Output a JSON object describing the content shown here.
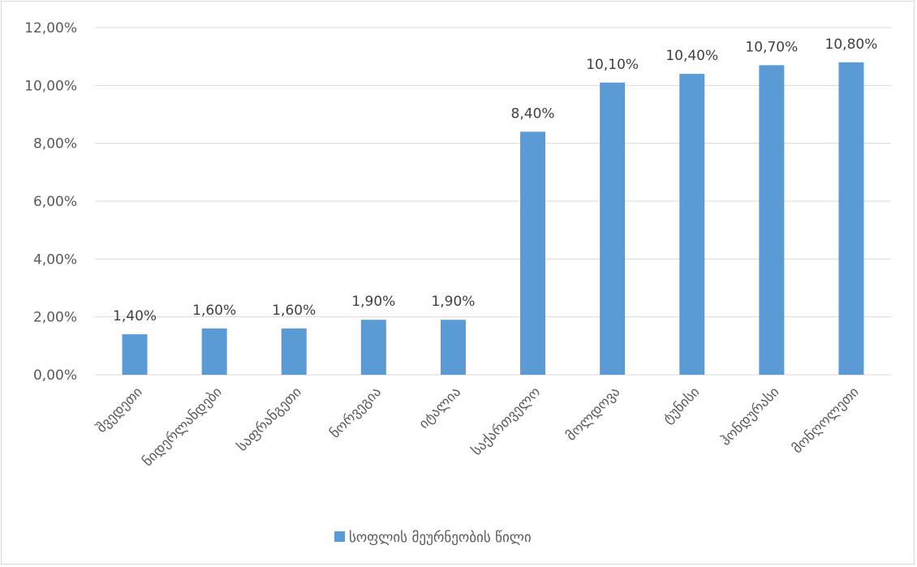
{
  "chart_data": {
    "type": "bar",
    "categories": [
      "შვედეთი",
      "ნიდერლანდები",
      "საფრანგეთი",
      "ნორვეგია",
      "იტალია",
      "საქართველო",
      "მოლდოვა",
      "ტუნისი",
      "ჰონდურასი",
      "მონღოლეთი"
    ],
    "series": [
      {
        "name": "სოფლის მეურნეობის წილი",
        "values": [
          1.4,
          1.6,
          1.6,
          1.9,
          1.9,
          8.4,
          10.1,
          10.4,
          10.7,
          10.8
        ],
        "labels": [
          "1,40%",
          "1,60%",
          "1,60%",
          "1,90%",
          "1,90%",
          "8,40%",
          "10,10%",
          "10,40%",
          "10,70%",
          "10,80%"
        ],
        "color": "#5b9bd5"
      }
    ],
    "ylim": [
      0,
      12
    ],
    "yticks": [
      0,
      2,
      4,
      6,
      8,
      10,
      12
    ],
    "ytick_labels": [
      "0,00%",
      "2,00%",
      "4,00%",
      "6,00%",
      "8,00%",
      "10,00%",
      "12,00%"
    ],
    "grid": true,
    "legend_position": "bottom",
    "colors": {
      "bar": "#5b9bd5",
      "grid": "#d9d9d9",
      "text": "#595959"
    }
  }
}
